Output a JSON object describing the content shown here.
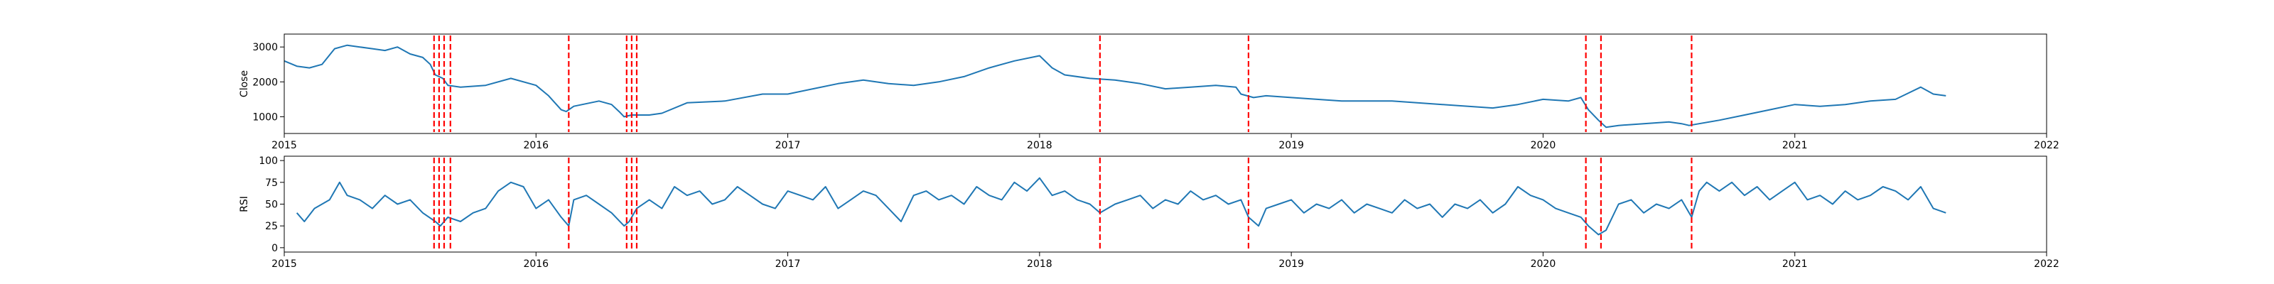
{
  "chart_data": [
    {
      "type": "line",
      "ylabel": "Close",
      "xlim": [
        2015.0,
        2022.0
      ],
      "ylim": [
        520,
        3370
      ],
      "x_ticks": [
        {
          "value": 2015,
          "label": "2015"
        },
        {
          "value": 2016,
          "label": "2016"
        },
        {
          "value": 2017,
          "label": "2017"
        },
        {
          "value": 2018,
          "label": "2018"
        },
        {
          "value": 2019,
          "label": "2019"
        },
        {
          "value": 2020,
          "label": "2020"
        },
        {
          "value": 2021,
          "label": "2021"
        },
        {
          "value": 2022,
          "label": "2022"
        }
      ],
      "y_ticks": [
        {
          "value": 1000,
          "label": "1000"
        },
        {
          "value": 2000,
          "label": "2000"
        },
        {
          "value": 3000,
          "label": "3000"
        }
      ],
      "series": [
        {
          "color": "#1f77b4",
          "x": [
            2015.0,
            2015.05,
            2015.1,
            2015.15,
            2015.2,
            2015.25,
            2015.3,
            2015.35,
            2015.4,
            2015.45,
            2015.5,
            2015.55,
            2015.58,
            2015.6,
            2015.63,
            2015.65,
            2015.7,
            2015.8,
            2015.9,
            2016.0,
            2016.05,
            2016.1,
            2016.12,
            2016.15,
            2016.25,
            2016.3,
            2016.33,
            2016.35,
            2016.38,
            2016.45,
            2016.5,
            2016.6,
            2016.75,
            2016.9,
            2017.0,
            2017.1,
            2017.2,
            2017.3,
            2017.4,
            2017.5,
            2017.6,
            2017.7,
            2017.8,
            2017.9,
            2018.0,
            2018.05,
            2018.1,
            2018.2,
            2018.3,
            2018.4,
            2018.5,
            2018.6,
            2018.7,
            2018.78,
            2018.8,
            2018.85,
            2018.9,
            2019.0,
            2019.2,
            2019.4,
            2019.6,
            2019.8,
            2019.9,
            2020.0,
            2020.1,
            2020.15,
            2020.18,
            2020.22,
            2020.25,
            2020.3,
            2020.4,
            2020.5,
            2020.55,
            2020.58,
            2020.62,
            2020.7,
            2020.8,
            2020.9,
            2021.0,
            2021.1,
            2021.2,
            2021.3,
            2021.4,
            2021.5,
            2021.55,
            2021.6
          ],
          "y": [
            2600,
            2450,
            2400,
            2500,
            2950,
            3050,
            3000,
            2950,
            2900,
            3000,
            2800,
            2700,
            2500,
            2200,
            2100,
            1900,
            1850,
            1900,
            2100,
            1900,
            1600,
            1200,
            1150,
            1300,
            1450,
            1350,
            1150,
            1000,
            1050,
            1050,
            1100,
            1400,
            1450,
            1650,
            1650,
            1800,
            1950,
            2050,
            1950,
            1900,
            2000,
            2150,
            2400,
            2600,
            2750,
            2400,
            2200,
            2100,
            2050,
            1950,
            1800,
            1850,
            1900,
            1850,
            1650,
            1550,
            1600,
            1550,
            1450,
            1450,
            1350,
            1250,
            1350,
            1500,
            1450,
            1550,
            1200,
            900,
            700,
            750,
            800,
            850,
            800,
            750,
            800,
            900,
            1050,
            1200,
            1350,
            1300,
            1350,
            1450,
            1500,
            1850,
            1650,
            1600
          ]
        }
      ],
      "event_lines": [
        2015.595,
        2015.615,
        2015.635,
        2015.66,
        2016.13,
        2016.36,
        2016.38,
        2016.4,
        2018.24,
        2018.83,
        2020.17,
        2020.23,
        2020.59
      ]
    },
    {
      "type": "line",
      "ylabel": "RSI",
      "xlim": [
        2015.0,
        2022.0
      ],
      "ylim": [
        -5,
        105
      ],
      "x_ticks": [
        {
          "value": 2015,
          "label": "2015"
        },
        {
          "value": 2016,
          "label": "2016"
        },
        {
          "value": 2017,
          "label": "2017"
        },
        {
          "value": 2018,
          "label": "2018"
        },
        {
          "value": 2019,
          "label": "2019"
        },
        {
          "value": 2020,
          "label": "2020"
        },
        {
          "value": 2021,
          "label": "2021"
        },
        {
          "value": 2022,
          "label": "2022"
        }
      ],
      "y_ticks": [
        {
          "value": 0,
          "label": "0"
        },
        {
          "value": 25,
          "label": "25"
        },
        {
          "value": 50,
          "label": "50"
        },
        {
          "value": 75,
          "label": "75"
        },
        {
          "value": 100,
          "label": "100"
        }
      ],
      "series": [
        {
          "color": "#1f77b4",
          "x": [
            2015.05,
            2015.08,
            2015.12,
            2015.18,
            2015.22,
            2015.25,
            2015.3,
            2015.35,
            2015.4,
            2015.45,
            2015.5,
            2015.55,
            2015.6,
            2015.62,
            2015.65,
            2015.7,
            2015.75,
            2015.8,
            2015.85,
            2015.9,
            2015.95,
            2016.0,
            2016.05,
            2016.1,
            2016.13,
            2016.15,
            2016.2,
            2016.25,
            2016.3,
            2016.35,
            2016.37,
            2016.4,
            2016.45,
            2016.5,
            2016.55,
            2016.6,
            2016.65,
            2016.7,
            2016.75,
            2016.8,
            2016.85,
            2016.9,
            2016.95,
            2017.0,
            2017.05,
            2017.1,
            2017.15,
            2017.2,
            2017.25,
            2017.3,
            2017.35,
            2017.4,
            2017.45,
            2017.5,
            2017.55,
            2017.6,
            2017.65,
            2017.7,
            2017.75,
            2017.8,
            2017.85,
            2017.9,
            2017.95,
            2018.0,
            2018.05,
            2018.1,
            2018.15,
            2018.2,
            2018.24,
            2018.3,
            2018.35,
            2018.4,
            2018.45,
            2018.5,
            2018.55,
            2018.6,
            2018.65,
            2018.7,
            2018.75,
            2018.8,
            2018.83,
            2018.87,
            2018.9,
            2018.95,
            2019.0,
            2019.05,
            2019.1,
            2019.15,
            2019.2,
            2019.25,
            2019.3,
            2019.35,
            2019.4,
            2019.45,
            2019.5,
            2019.55,
            2019.6,
            2019.65,
            2019.7,
            2019.75,
            2019.8,
            2019.85,
            2019.9,
            2019.95,
            2020.0,
            2020.05,
            2020.1,
            2020.15,
            2020.18,
            2020.22,
            2020.25,
            2020.3,
            2020.35,
            2020.4,
            2020.45,
            2020.5,
            2020.55,
            2020.59,
            2020.62,
            2020.65,
            2020.7,
            2020.75,
            2020.8,
            2020.85,
            2020.9,
            2020.95,
            2021.0,
            2021.05,
            2021.1,
            2021.15,
            2021.2,
            2021.25,
            2021.3,
            2021.35,
            2021.4,
            2021.45,
            2021.5,
            2021.55,
            2021.6
          ],
          "y": [
            40,
            30,
            45,
            55,
            75,
            60,
            55,
            45,
            60,
            50,
            55,
            40,
            30,
            25,
            35,
            30,
            40,
            45,
            65,
            75,
            70,
            45,
            55,
            35,
            25,
            55,
            60,
            50,
            40,
            25,
            30,
            45,
            55,
            45,
            70,
            60,
            65,
            50,
            55,
            70,
            60,
            50,
            45,
            65,
            60,
            55,
            70,
            45,
            55,
            65,
            60,
            45,
            30,
            60,
            65,
            55,
            60,
            50,
            70,
            60,
            55,
            75,
            65,
            80,
            60,
            65,
            55,
            50,
            40,
            50,
            55,
            60,
            45,
            55,
            50,
            65,
            55,
            60,
            50,
            55,
            35,
            25,
            45,
            50,
            55,
            40,
            50,
            45,
            55,
            40,
            50,
            45,
            40,
            55,
            45,
            50,
            35,
            50,
            45,
            55,
            40,
            50,
            70,
            60,
            55,
            45,
            40,
            35,
            25,
            15,
            20,
            50,
            55,
            40,
            50,
            45,
            55,
            35,
            65,
            75,
            65,
            75,
            60,
            70,
            55,
            65,
            75,
            55,
            60,
            50,
            65,
            55,
            60,
            70,
            65,
            55,
            70,
            45,
            40
          ]
        }
      ],
      "event_lines": [
        2015.595,
        2015.615,
        2015.635,
        2015.66,
        2016.13,
        2016.36,
        2016.38,
        2016.4,
        2018.24,
        2018.83,
        2020.17,
        2020.23,
        2020.59
      ]
    }
  ]
}
